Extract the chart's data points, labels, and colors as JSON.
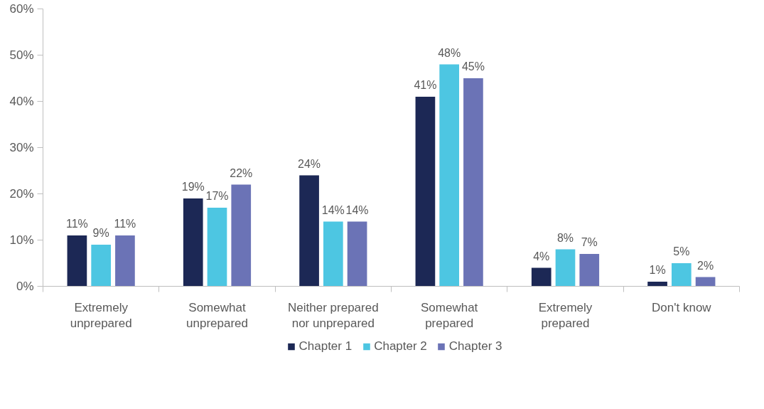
{
  "chart_data": {
    "type": "bar",
    "categories": [
      "Extremely unprepared",
      "Somewhat unprepared",
      "Neither prepared nor unprepared",
      "Somewhat prepared",
      "Extremely prepared",
      "Don't know"
    ],
    "series": [
      {
        "name": "Chapter 1",
        "color": "#1c2855",
        "values": [
          11,
          19,
          24,
          41,
          4,
          1
        ],
        "value_labels": [
          "11%",
          "19%",
          "24%",
          "41%",
          "4%",
          "1%"
        ]
      },
      {
        "name": "Chapter 2",
        "color": "#4dc6e2",
        "values": [
          9,
          17,
          14,
          48,
          8,
          5
        ],
        "value_labels": [
          "9%",
          "17%",
          "14%",
          "48%",
          "8%",
          "5%"
        ]
      },
      {
        "name": "Chapter 3",
        "color": "#6b73b6",
        "values": [
          11,
          22,
          14,
          45,
          7,
          2
        ],
        "value_labels": [
          "11%",
          "22%",
          "14%",
          "45%",
          "7%",
          "2%"
        ]
      }
    ],
    "ylim": [
      0,
      60
    ],
    "yticks": [
      {
        "value": 0,
        "label": "0%"
      },
      {
        "value": 10,
        "label": "10%"
      },
      {
        "value": 20,
        "label": "20%"
      },
      {
        "value": 30,
        "label": "30%"
      },
      {
        "value": 40,
        "label": "40%"
      },
      {
        "value": 50,
        "label": "50%"
      },
      {
        "value": 60,
        "label": "60%"
      }
    ],
    "grid": false,
    "legend": "bottom"
  }
}
